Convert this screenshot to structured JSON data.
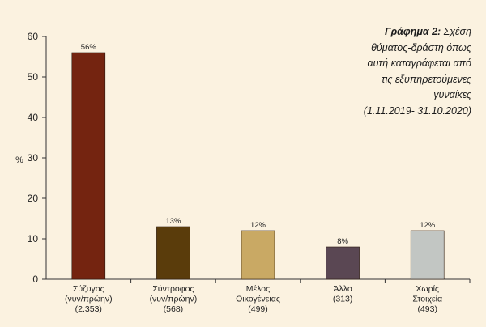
{
  "chart_data": {
    "type": "bar",
    "title_lead": "Γράφημα 2:",
    "title_lines": [
      "Σχέση",
      "θύματος-δράστη όπως",
      "αυτή καταγράφεται από",
      "τις εξυπηρετούμενες",
      "γυναίκες",
      "(1.11.2019- 31.10.2020)"
    ],
    "ylabel": "%",
    "xlabel": "",
    "ylim": [
      0,
      60
    ],
    "yticks": [
      0,
      10,
      20,
      30,
      40,
      50,
      60
    ],
    "categories": [
      [
        "Σύζυγος",
        "(νυν/πρώην)",
        "(2.353)"
      ],
      [
        "Σύντροφος",
        "(νυν/πρώην)",
        "(568)"
      ],
      [
        "Μέλος",
        "Οικογένειας",
        "(499)"
      ],
      [
        "Άλλο",
        "(313)"
      ],
      [
        "Χωρίς",
        "Στοιχεία",
        "(493)"
      ]
    ],
    "values": [
      56,
      13,
      12,
      8,
      12
    ],
    "value_labels": [
      "56%",
      "13%",
      "12%",
      "8%",
      "12%"
    ],
    "colors": [
      "#742410",
      "#5a3c0b",
      "#c9a964",
      "#5a4753",
      "#c2c6c3"
    ],
    "grid": false,
    "legend": "none"
  }
}
